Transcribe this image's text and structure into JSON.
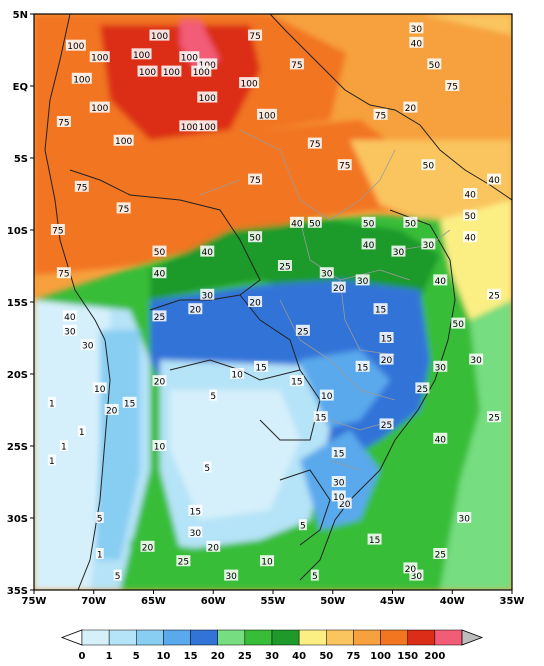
{
  "map": {
    "lat_ticks": [
      "5N",
      "EQ",
      "5S",
      "10S",
      "15S",
      "20S",
      "25S",
      "30S",
      "35S"
    ],
    "lon_ticks": [
      "75W",
      "70W",
      "65W",
      "60W",
      "55W",
      "50W",
      "45W",
      "40W",
      "35W"
    ],
    "extent": {
      "lon_min": -75,
      "lon_max": -35,
      "lat_min": -35,
      "lat_max": 5
    },
    "contour_labels": [
      {
        "text": "100",
        "lon": -71.5,
        "lat": 2.8
      },
      {
        "text": "100",
        "lon": -71.0,
        "lat": 0.5
      },
      {
        "text": "100",
        "lon": -69.5,
        "lat": 2.0
      },
      {
        "text": "100",
        "lon": -66.0,
        "lat": 2.2
      },
      {
        "text": "100",
        "lon": -64.5,
        "lat": 3.5
      },
      {
        "text": "100",
        "lon": -62.0,
        "lat": 2.0
      },
      {
        "text": "100",
        "lon": -60.5,
        "lat": 1.5
      },
      {
        "text": "100",
        "lon": -65.5,
        "lat": 1.0
      },
      {
        "text": "100",
        "lon": -63.5,
        "lat": 1.0
      },
      {
        "text": "100",
        "lon": -61.0,
        "lat": 1.0
      },
      {
        "text": "100",
        "lon": -57.0,
        "lat": 0.2
      },
      {
        "text": "100",
        "lon": -60.5,
        "lat": -0.8
      },
      {
        "text": "100",
        "lon": -69.5,
        "lat": -1.5
      },
      {
        "text": "100",
        "lon": -62.0,
        "lat": -2.8
      },
      {
        "text": "100",
        "lon": -60.5,
        "lat": -2.8
      },
      {
        "text": "100",
        "lon": -67.5,
        "lat": -3.8
      },
      {
        "text": "100",
        "lon": -55.5,
        "lat": -2.0
      },
      {
        "text": "75",
        "lon": -56.5,
        "lat": 3.5
      },
      {
        "text": "75",
        "lon": -53.0,
        "lat": 1.5
      },
      {
        "text": "75",
        "lon": -72.5,
        "lat": -2.5
      },
      {
        "text": "75",
        "lon": -71.0,
        "lat": -7.0
      },
      {
        "text": "75",
        "lon": -67.5,
        "lat": -8.5
      },
      {
        "text": "75",
        "lon": -56.5,
        "lat": -6.5
      },
      {
        "text": "75",
        "lon": -49.0,
        "lat": -5.5
      },
      {
        "text": "75",
        "lon": -51.5,
        "lat": -4.0
      },
      {
        "text": "75",
        "lon": -46.0,
        "lat": -2.0
      },
      {
        "text": "75",
        "lon": -40.0,
        "lat": 0.0
      },
      {
        "text": "75",
        "lon": -73.0,
        "lat": -10.0
      },
      {
        "text": "75",
        "lon": -72.5,
        "lat": -13.0
      },
      {
        "text": "50",
        "lon": -42.0,
        "lat": -5.5
      },
      {
        "text": "50",
        "lon": -41.5,
        "lat": 1.5
      },
      {
        "text": "50",
        "lon": -47.0,
        "lat": -9.5
      },
      {
        "text": "50",
        "lon": -43.5,
        "lat": -9.5
      },
      {
        "text": "50",
        "lon": -56.5,
        "lat": -10.5
      },
      {
        "text": "50",
        "lon": -64.5,
        "lat": -11.5
      },
      {
        "text": "50",
        "lon": -39.5,
        "lat": -16.5
      },
      {
        "text": "50",
        "lon": -51.5,
        "lat": -9.5
      },
      {
        "text": "50",
        "lon": -38.5,
        "lat": -9.0
      },
      {
        "text": "40",
        "lon": -53.0,
        "lat": -9.5
      },
      {
        "text": "40",
        "lon": -60.5,
        "lat": -11.5
      },
      {
        "text": "40",
        "lon": -64.5,
        "lat": -13.0
      },
      {
        "text": "40",
        "lon": -47.0,
        "lat": -11.0
      },
      {
        "text": "40",
        "lon": -38.5,
        "lat": -7.5
      },
      {
        "text": "40",
        "lon": -38.5,
        "lat": -10.5
      },
      {
        "text": "40",
        "lon": -72.0,
        "lat": -16.0
      },
      {
        "text": "40",
        "lon": -41.0,
        "lat": -24.5
      },
      {
        "text": "40",
        "lon": -43.0,
        "lat": 3.0
      },
      {
        "text": "40",
        "lon": -41.0,
        "lat": -13.5
      },
      {
        "text": "40",
        "lon": -36.5,
        "lat": -6.5
      },
      {
        "text": "30",
        "lon": -43.0,
        "lat": 4.0
      },
      {
        "text": "30",
        "lon": -44.5,
        "lat": -11.5
      },
      {
        "text": "30",
        "lon": -42.0,
        "lat": -11.0
      },
      {
        "text": "30",
        "lon": -50.5,
        "lat": -13.0
      },
      {
        "text": "30",
        "lon": -47.5,
        "lat": -13.5
      },
      {
        "text": "30",
        "lon": -60.5,
        "lat": -14.5
      },
      {
        "text": "30",
        "lon": -72.0,
        "lat": -17.0
      },
      {
        "text": "30",
        "lon": -70.5,
        "lat": -18.0
      },
      {
        "text": "30",
        "lon": -41.0,
        "lat": -19.5
      },
      {
        "text": "30",
        "lon": -38.0,
        "lat": -19.0
      },
      {
        "text": "30",
        "lon": -49.5,
        "lat": -27.5
      },
      {
        "text": "30",
        "lon": -39.0,
        "lat": -30.0
      },
      {
        "text": "30",
        "lon": -43.0,
        "lat": -34.0
      },
      {
        "text": "30",
        "lon": -58.5,
        "lat": -34.0
      },
      {
        "text": "30",
        "lon": -61.5,
        "lat": -31.0
      },
      {
        "text": "25",
        "lon": -36.5,
        "lat": -14.5
      },
      {
        "text": "25",
        "lon": -42.5,
        "lat": -21.0
      },
      {
        "text": "25",
        "lon": -36.5,
        "lat": -23.0
      },
      {
        "text": "25",
        "lon": -41.0,
        "lat": -32.5
      },
      {
        "text": "25",
        "lon": -54.0,
        "lat": -12.5
      },
      {
        "text": "25",
        "lon": -52.5,
        "lat": -17.0
      },
      {
        "text": "25",
        "lon": -45.5,
        "lat": -23.5
      },
      {
        "text": "25",
        "lon": -62.5,
        "lat": -33.0
      },
      {
        "text": "25",
        "lon": -64.5,
        "lat": -16.0
      },
      {
        "text": "20",
        "lon": -43.5,
        "lat": -1.5
      },
      {
        "text": "20",
        "lon": -61.5,
        "lat": -15.5
      },
      {
        "text": "20",
        "lon": -56.5,
        "lat": -15.0
      },
      {
        "text": "20",
        "lon": -49.5,
        "lat": -14.0
      },
      {
        "text": "20",
        "lon": -45.5,
        "lat": -19.0
      },
      {
        "text": "20",
        "lon": -64.5,
        "lat": -20.5
      },
      {
        "text": "20",
        "lon": -68.5,
        "lat": -22.5
      },
      {
        "text": "20",
        "lon": -60.0,
        "lat": -32.0
      },
      {
        "text": "20",
        "lon": -65.5,
        "lat": -32.0
      },
      {
        "text": "20",
        "lon": -43.5,
        "lat": -33.5
      },
      {
        "text": "20",
        "lon": -49.0,
        "lat": -29.0
      },
      {
        "text": "15",
        "lon": -56.0,
        "lat": -19.5
      },
      {
        "text": "15",
        "lon": -53.0,
        "lat": -20.5
      },
      {
        "text": "15",
        "lon": -46.0,
        "lat": -15.5
      },
      {
        "text": "15",
        "lon": -45.5,
        "lat": -17.5
      },
      {
        "text": "15",
        "lon": -47.5,
        "lat": -19.5
      },
      {
        "text": "15",
        "lon": -51.0,
        "lat": -23.0
      },
      {
        "text": "15",
        "lon": -49.5,
        "lat": -25.5
      },
      {
        "text": "15",
        "lon": -46.5,
        "lat": -31.5
      },
      {
        "text": "15",
        "lon": -61.5,
        "lat": -29.5
      },
      {
        "text": "15",
        "lon": -67.0,
        "lat": -22.0
      },
      {
        "text": "10",
        "lon": -58.0,
        "lat": -20.0
      },
      {
        "text": "10",
        "lon": -50.5,
        "lat": -21.5
      },
      {
        "text": "10",
        "lon": -49.5,
        "lat": -28.5
      },
      {
        "text": "10",
        "lon": -55.5,
        "lat": -33.0
      },
      {
        "text": "10",
        "lon": -64.5,
        "lat": -25.0
      },
      {
        "text": "10",
        "lon": -69.5,
        "lat": -21.0
      },
      {
        "text": "5",
        "lon": -60.5,
        "lat": -26.5
      },
      {
        "text": "5",
        "lon": -69.5,
        "lat": -30.0
      },
      {
        "text": "5",
        "lon": -52.5,
        "lat": -30.5
      },
      {
        "text": "5",
        "lon": -60.0,
        "lat": -21.5
      },
      {
        "text": "5",
        "lon": -51.5,
        "lat": -34.0
      },
      {
        "text": "5",
        "lon": -68.0,
        "lat": -34.0
      },
      {
        "text": "1",
        "lon": -73.5,
        "lat": -22.0
      },
      {
        "text": "1",
        "lon": -72.5,
        "lat": -25.0
      },
      {
        "text": "1",
        "lon": -71.0,
        "lat": -24.0
      },
      {
        "text": "1",
        "lon": -69.5,
        "lat": -32.5
      },
      {
        "text": "1",
        "lon": -73.5,
        "lat": -26.0
      }
    ]
  },
  "colorbar": {
    "labels": [
      "0",
      "1",
      "5",
      "10",
      "15",
      "20",
      "25",
      "30",
      "40",
      "50",
      "75",
      "100",
      "150",
      "200"
    ],
    "colors": [
      "#d6f0fb",
      "#b5e3f7",
      "#88cdf2",
      "#5aa9ec",
      "#3273d8",
      "#76dd80",
      "#37bd37",
      "#1f9a2a",
      "#fbef84",
      "#fac55e",
      "#f6a13d",
      "#f27520",
      "#dc2d18",
      "#f25c76"
    ],
    "end_colors": {
      "low": "#ffffff",
      "high": "#bdbdbd"
    }
  }
}
